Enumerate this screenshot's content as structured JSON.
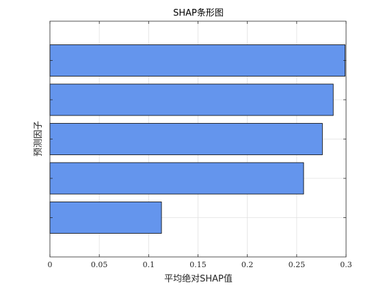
{
  "chart_data": {
    "type": "bar",
    "orientation": "horizontal",
    "title": "SHAP条形图",
    "xlabel": "平均绝对SHAP值",
    "ylabel": "预测因子",
    "categories": [
      "",
      "",
      "",
      "",
      ""
    ],
    "values": [
      0.299,
      0.287,
      0.276,
      0.257,
      0.113
    ],
    "xlim": [
      0,
      0.3
    ],
    "xticks": [
      0,
      0.05,
      0.1,
      0.15,
      0.2,
      0.25,
      0.3
    ],
    "xtick_labels": [
      "0",
      "0.05",
      "0.1",
      "0.15",
      "0.2",
      "0.25",
      "0.3"
    ],
    "grid": true,
    "legend": "none",
    "bar_color": "#6495ED",
    "bar_edge_color": "#000000",
    "grid_color": "#e0e0e0"
  }
}
